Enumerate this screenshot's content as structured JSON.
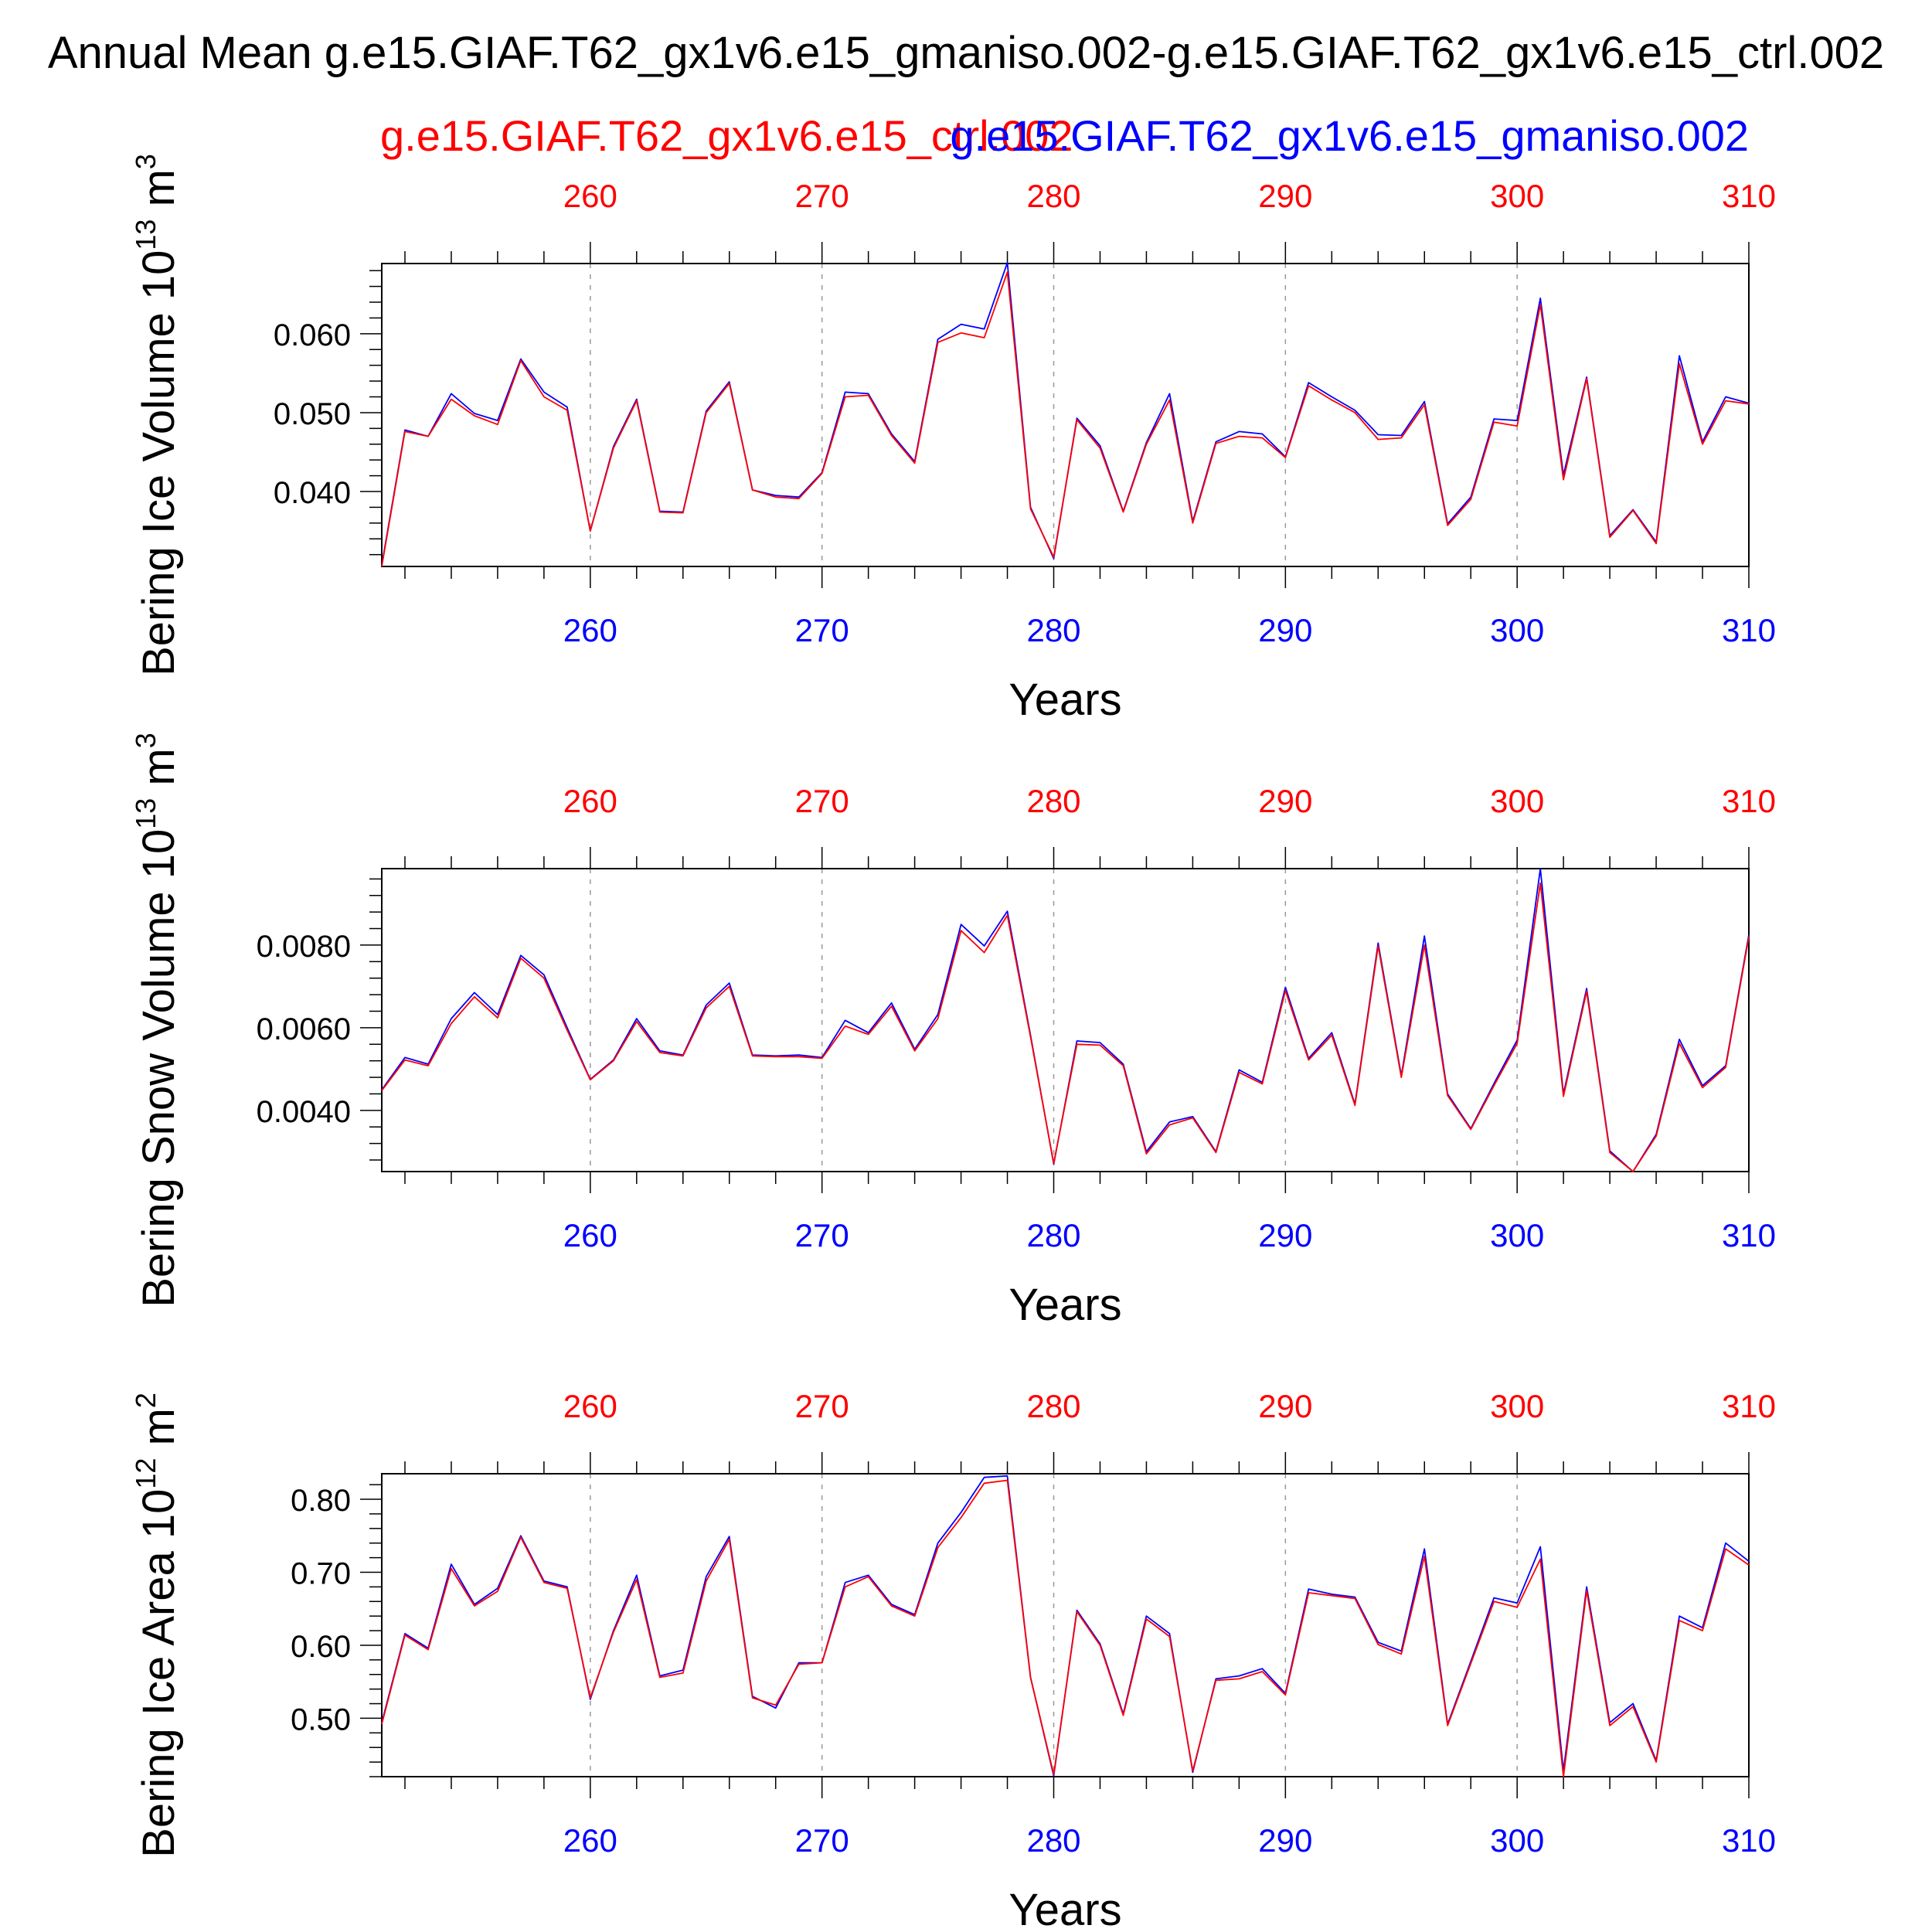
{
  "title": "Annual Mean g.e15.GIAF.T62_gx1v6.e15_gmaniso.002-g.e15.GIAF.T62_gx1v6.e15_ctrl.002",
  "legend": {
    "ctrl": "g.e15.GIAF.T62_gx1v6.e15_ctrl.002",
    "gmaniso": "g.e15.GIAF.T62_gx1v6.e15_gmaniso.002"
  },
  "colors": {
    "ctrl": "#ff0000",
    "gmaniso": "#0000ff",
    "axis": "#000000",
    "grid": "#999999"
  },
  "chart_data": [
    {
      "type": "line",
      "ylabel": "Bering Ice Volume 10",
      "ylabel_exp": "13",
      "ylabel_unit": " m",
      "ylabel_unit_exp": "3",
      "xlabel": "Years",
      "xlim": [
        251,
        310
      ],
      "ylim": [
        0.0305,
        0.0689
      ],
      "xticks": [
        260,
        270,
        280,
        290,
        300,
        310
      ],
      "xtick_labels": [
        "260",
        "270",
        "280",
        "290",
        "300",
        "310"
      ],
      "yticks": [
        0.04,
        0.05,
        0.06
      ],
      "ytick_labels": [
        "0.040",
        "0.050",
        "0.060"
      ],
      "y_minor_step": 0.002,
      "grid": "vertical dashed at major x ticks",
      "x": [
        251,
        252,
        253,
        254,
        255,
        256,
        257,
        258,
        259,
        260,
        261,
        262,
        263,
        264,
        265,
        266,
        267,
        268,
        269,
        270,
        271,
        272,
        273,
        274,
        275,
        276,
        277,
        278,
        279,
        280,
        281,
        282,
        283,
        284,
        285,
        286,
        287,
        288,
        289,
        290,
        291,
        292,
        293,
        294,
        295,
        296,
        297,
        298,
        299,
        300,
        301,
        302,
        303,
        304,
        305,
        306,
        307,
        308,
        309,
        310
      ],
      "series": [
        {
          "name": "g.e15.GIAF.T62_gx1v6.e15_ctrl.002",
          "key": "ctrl",
          "values": [
            0.0305,
            0.0476,
            0.047,
            0.0517,
            0.0496,
            0.0485,
            0.0566,
            0.052,
            0.0503,
            0.035,
            0.0455,
            0.0515,
            0.0374,
            0.0373,
            0.05,
            0.0537,
            0.0402,
            0.0393,
            0.0391,
            0.0423,
            0.052,
            0.0522,
            0.0471,
            0.0436,
            0.0589,
            0.0601,
            0.0595,
            0.0678,
            0.0378,
            0.0317,
            0.0491,
            0.0455,
            0.0374,
            0.046,
            0.0516,
            0.036,
            0.0461,
            0.047,
            0.0468,
            0.0443,
            0.0534,
            0.0516,
            0.05,
            0.0466,
            0.0468,
            0.051,
            0.0357,
            0.039,
            0.0488,
            0.0483,
            0.0637,
            0.0415,
            0.0543,
            0.0342,
            0.0376,
            0.0334,
            0.0562,
            0.046,
            0.0515,
            0.0511
          ]
        },
        {
          "name": "g.e15.GIAF.T62_gx1v6.e15_gmaniso.002",
          "key": "gmaniso",
          "values": [
            0.0307,
            0.0478,
            0.047,
            0.0524,
            0.0499,
            0.049,
            0.0568,
            0.0526,
            0.0507,
            0.035,
            0.0457,
            0.0517,
            0.0375,
            0.0374,
            0.0502,
            0.0539,
            0.0402,
            0.0395,
            0.0393,
            0.0424,
            0.0526,
            0.0524,
            0.0473,
            0.0438,
            0.0593,
            0.0612,
            0.0606,
            0.069,
            0.038,
            0.0315,
            0.0493,
            0.0458,
            0.0375,
            0.0462,
            0.0524,
            0.0362,
            0.0463,
            0.0476,
            0.0473,
            0.0444,
            0.0538,
            0.052,
            0.0503,
            0.0472,
            0.0471,
            0.0514,
            0.0359,
            0.0393,
            0.0492,
            0.049,
            0.0645,
            0.0421,
            0.0545,
            0.0344,
            0.0377,
            0.0336,
            0.0572,
            0.0463,
            0.052,
            0.0512
          ]
        }
      ]
    },
    {
      "type": "line",
      "ylabel": "Bering Snow Volume 10",
      "ylabel_exp": "13",
      "ylabel_unit": " m",
      "ylabel_unit_exp": "3",
      "xlabel": "Years",
      "xlim": [
        251,
        310
      ],
      "ylim": [
        0.00252,
        0.00985
      ],
      "xticks": [
        260,
        270,
        280,
        290,
        300,
        310
      ],
      "xtick_labels": [
        "260",
        "270",
        "280",
        "290",
        "300",
        "310"
      ],
      "yticks": [
        0.004,
        0.006,
        0.008
      ],
      "ytick_labels": [
        "0.0040",
        "0.0060",
        "0.0080"
      ],
      "y_minor_step": 0.0004,
      "grid": "vertical dashed at major x ticks",
      "x": [
        251,
        252,
        253,
        254,
        255,
        256,
        257,
        258,
        259,
        260,
        261,
        262,
        263,
        264,
        265,
        266,
        267,
        268,
        269,
        270,
        271,
        272,
        273,
        274,
        275,
        276,
        277,
        278,
        279,
        280,
        281,
        282,
        283,
        284,
        285,
        286,
        287,
        288,
        289,
        290,
        291,
        292,
        293,
        294,
        295,
        296,
        297,
        298,
        299,
        300,
        301,
        302,
        303,
        304,
        305,
        306,
        307,
        308,
        309,
        310
      ],
      "series": [
        {
          "name": "g.e15.GIAF.T62_gx1v6.e15_ctrl.002",
          "key": "ctrl",
          "values": [
            0.00448,
            0.00522,
            0.00508,
            0.0061,
            0.00675,
            0.00624,
            0.00768,
            0.0072,
            0.00594,
            0.00474,
            0.0052,
            0.00615,
            0.0054,
            0.00532,
            0.00648,
            0.007,
            0.00532,
            0.0053,
            0.0053,
            0.00526,
            0.00604,
            0.00584,
            0.00652,
            0.00544,
            0.00622,
            0.00835,
            0.00782,
            0.00872,
            0.00578,
            0.00272,
            0.0056,
            0.00558,
            0.00508,
            0.00295,
            0.00365,
            0.00382,
            0.00298,
            0.00492,
            0.00464,
            0.0069,
            0.00522,
            0.00582,
            0.00412,
            0.00798,
            0.0048,
            0.008,
            0.00436,
            0.00354,
            0.0046,
            0.00562,
            0.0095,
            0.00434,
            0.00688,
            0.00298,
            0.00252,
            0.00338,
            0.00562,
            0.00455,
            0.00504,
            0.0082
          ]
        },
        {
          "name": "g.e15.GIAF.T62_gx1v6.e15_gmaniso.002",
          "key": "gmaniso",
          "values": [
            0.0045,
            0.00528,
            0.00512,
            0.00622,
            0.00685,
            0.00632,
            0.00775,
            0.00728,
            0.006,
            0.00475,
            0.00522,
            0.00622,
            0.00544,
            0.00534,
            0.00655,
            0.00708,
            0.00534,
            0.00532,
            0.00534,
            0.00528,
            0.00618,
            0.00588,
            0.0066,
            0.00548,
            0.00632,
            0.0085,
            0.00798,
            0.00882,
            0.00582,
            0.0027,
            0.00568,
            0.00564,
            0.00512,
            0.003,
            0.00372,
            0.00385,
            0.003,
            0.00498,
            0.00468,
            0.00698,
            0.00526,
            0.00588,
            0.00415,
            0.00805,
            0.00484,
            0.00822,
            0.0044,
            0.00356,
            0.00465,
            0.0057,
            0.00985,
            0.0044,
            0.00695,
            0.00302,
            0.00252,
            0.00342,
            0.00572,
            0.0046,
            0.00508,
            0.00825
          ]
        }
      ]
    },
    {
      "type": "line",
      "ylabel": "Bering Ice Area 10",
      "ylabel_exp": "12",
      "ylabel_unit": " m",
      "ylabel_unit_exp": "2",
      "xlabel": "Years",
      "xlim": [
        251,
        310
      ],
      "ylim": [
        0.42,
        0.835
      ],
      "xticks": [
        260,
        270,
        280,
        290,
        300,
        310
      ],
      "xtick_labels": [
        "260",
        "270",
        "280",
        "290",
        "300",
        "310"
      ],
      "yticks": [
        0.5,
        0.6,
        0.7,
        0.8
      ],
      "ytick_labels": [
        "0.50",
        "0.60",
        "0.70",
        "0.80"
      ],
      "y_minor_step": 0.02,
      "grid": "vertical dashed at major x ticks",
      "x": [
        251,
        252,
        253,
        254,
        255,
        256,
        257,
        258,
        259,
        260,
        261,
        262,
        263,
        264,
        265,
        266,
        267,
        268,
        269,
        270,
        271,
        272,
        273,
        274,
        275,
        276,
        277,
        278,
        279,
        280,
        281,
        282,
        283,
        284,
        285,
        286,
        287,
        288,
        289,
        290,
        291,
        292,
        293,
        294,
        295,
        296,
        297,
        298,
        299,
        300,
        301,
        302,
        303,
        304,
        305,
        306,
        307,
        308,
        309,
        310
      ],
      "series": [
        {
          "name": "g.e15.GIAF.T62_gx1v6.e15_ctrl.002",
          "key": "ctrl",
          "values": [
            0.492,
            0.614,
            0.594,
            0.705,
            0.654,
            0.674,
            0.748,
            0.686,
            0.678,
            0.528,
            0.618,
            0.69,
            0.556,
            0.562,
            0.688,
            0.745,
            0.528,
            0.518,
            0.574,
            0.576,
            0.68,
            0.694,
            0.654,
            0.64,
            0.734,
            0.775,
            0.822,
            0.826,
            0.556,
            0.423,
            0.646,
            0.6,
            0.504,
            0.636,
            0.612,
            0.428,
            0.552,
            0.554,
            0.564,
            0.532,
            0.672,
            0.668,
            0.664,
            0.601,
            0.588,
            0.722,
            0.49,
            0.575,
            0.66,
            0.652,
            0.718,
            0.42,
            0.675,
            0.49,
            0.516,
            0.44,
            0.634,
            0.62,
            0.732,
            0.71
          ]
        },
        {
          "name": "g.e15.GIAF.T62_gx1v6.e15_gmaniso.002",
          "key": "gmaniso",
          "values": [
            0.494,
            0.616,
            0.596,
            0.711,
            0.656,
            0.678,
            0.75,
            0.688,
            0.68,
            0.526,
            0.62,
            0.696,
            0.558,
            0.566,
            0.694,
            0.749,
            0.53,
            0.514,
            0.576,
            0.576,
            0.686,
            0.696,
            0.656,
            0.642,
            0.74,
            0.782,
            0.83,
            0.832,
            0.556,
            0.421,
            0.648,
            0.602,
            0.506,
            0.64,
            0.616,
            0.426,
            0.554,
            0.558,
            0.568,
            0.534,
            0.677,
            0.67,
            0.666,
            0.604,
            0.592,
            0.732,
            0.492,
            0.578,
            0.665,
            0.658,
            0.735,
            0.428,
            0.68,
            0.494,
            0.52,
            0.442,
            0.64,
            0.624,
            0.74,
            0.715
          ]
        }
      ]
    }
  ]
}
